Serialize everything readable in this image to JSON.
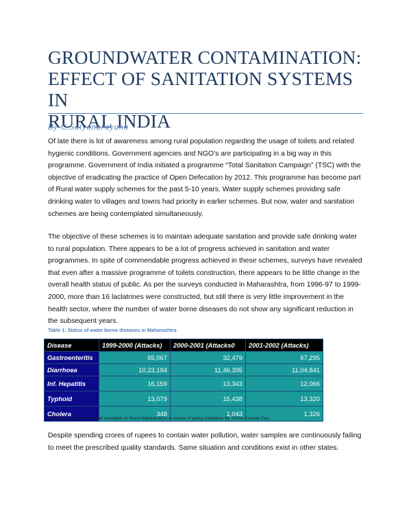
{
  "document": {
    "title_lines": [
      "GROUNDWATER CONTAMINATION:",
      "EFFECT OF SANITATION SYSTEMS IN",
      "RURAL INDIA"
    ],
    "byline": "By C.Satyanarayana",
    "paragraph_1": "Of late there is lot of awareness among rural population regarding the usage of toilets and related hygienic conditions. Government agencies and NGO’s are participating in a big way in this programme. Government of India initiated a programme “Total Sanitation Campaign” (TSC) with the objective of eradicating the practice of Open Defecation by 2012. This programme has become part of Rural water supply schemes for the past 5-10 years. Water supply schemes providing safe drinking water to villages and towns had priority in earlier schemes. But now, water and sanitation schemes are being contemplated simultaneously.",
    "paragraph_2": "The objective of these schemes is to maintain adequate sanitation and provide safe drinking water to rural population. There appears to be a lot of progress achieved in sanitation and water programmes. In spite of commendable progress achieved in these schemes, surveys have revealed that even after a massive programme of toilets construction, there appears to be little change in the overall health status of public. As per the surveys conducted in Maharashtra, from 1996-97 to 1999-2000, more than 16 laclatrines were constructed, but still there is very little improvement in the health sector, where the number of water borne diseases do not show any significant reduction in the subsequent years.",
    "paragraph_3": "Despite spending crores of rupees to contain water pollution, water samples are continuously failing to meet the prescribed quality standards. Same situation and conditions exist in other states."
  },
  "table": {
    "caption": "Table 1: Status of water borne diseases in Maharashtra",
    "headers": [
      "Disease",
      "1999-2000 (Attacks)",
      "2000-2001 (Attacks0",
      "2001-2002 (Attacks)"
    ],
    "rows": [
      [
        "Gastroenteritis",
        "65,067",
        "32,479",
        "67,295"
      ],
      [
        "Diarrhoea",
        "10,23,194",
        "11,46,395",
        "11,04,841"
      ],
      [
        "Inf. Hepatitis",
        "16,159",
        "13,343",
        "12,066"
      ],
      [
        "Typhoid",
        "13,079",
        "15,438",
        "13,320"
      ],
      [
        "Cholera",
        "348",
        "1,043",
        "1,326"
      ]
    ],
    "source": "Source: Drinking water and sanitation in Rural Maharashtra: A review of policy initiatives By Shree Keshab Das"
  },
  "colors": {
    "title": "#1f3a5f",
    "accent": "#4f81bd",
    "table_header_bg": "#000000",
    "table_disease_bg": "#0b0a8a",
    "table_value_bg": "#1a9a9a"
  }
}
